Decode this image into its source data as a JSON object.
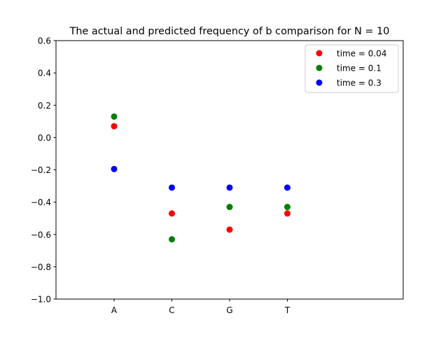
{
  "chart_data": {
    "type": "scatter",
    "title": "The actual and predicted frequency of b comparison for N = 10",
    "xlabel": "",
    "ylabel": "",
    "categories": [
      "A",
      "C",
      "G",
      "T"
    ],
    "ylim": [
      -1.0,
      0.6
    ],
    "yticks": [
      "0.6",
      "0.4",
      "0.2",
      "0.0",
      "−0.2",
      "−0.4",
      "−0.6",
      "−0.8",
      "−1.0"
    ],
    "ytick_values": [
      0.6,
      0.4,
      0.2,
      0.0,
      -0.2,
      -0.4,
      -0.6,
      -0.8,
      -1.0
    ],
    "grid": false,
    "legend_position": "top-right",
    "series": [
      {
        "name": "time = 0.04",
        "color": "#ff0000",
        "values": [
          0.07,
          -0.47,
          -0.57,
          -0.47
        ]
      },
      {
        "name": "time = 0.1",
        "color": "#008000",
        "values": [
          0.13,
          -0.63,
          -0.43,
          -0.43
        ]
      },
      {
        "name": "time = 0.3",
        "color": "#0000ff",
        "values": [
          -0.195,
          -0.31,
          -0.31,
          -0.31
        ]
      }
    ]
  }
}
